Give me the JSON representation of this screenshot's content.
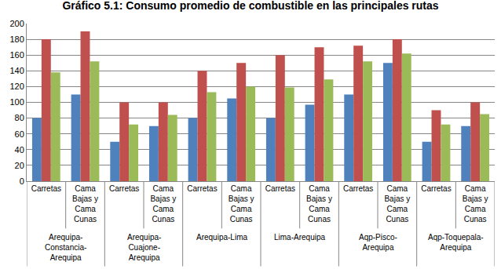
{
  "chart_data": {
    "type": "bar",
    "title": "Gráfico 5.1: Consumo promedio de combustible en las principales rutas",
    "categories": [
      "Carretas",
      "Cama Bajas y Cama Cunas",
      "Carretas",
      "Cama Bajas y Cama Cunas",
      "Carretas",
      "Cama Bajas y Cama Cunas",
      "Carretas",
      "Cama Bajas y Cama Cunas",
      "Carretas",
      "Cama Bajas y Cama Cunas",
      "Carretas",
      "Cama Bajas y Cama Cunas"
    ],
    "category_groups": [
      "Arequipa-Constancia-Arequipa",
      "Arequipa-Constancia-Arequipa",
      "Arequipa-Cuajone-Arequipa",
      "Arequipa-Cuajone-Arequipa",
      "Arequipa-Lima",
      "Arequipa-Lima",
      "Lima-Arequipa",
      "Lima-Arequipa",
      "Aqp-Pisco-Arequipa",
      "Aqp-Pisco-Arequipa",
      "Aqp-Toquepala-Arequipa",
      "Aqp-Toquepala-Arequipa"
    ],
    "series": [
      {
        "color": "#4f81bd",
        "values": [
          80,
          110,
          50,
          70,
          80,
          105,
          80,
          97,
          110,
          150,
          50,
          70
        ]
      },
      {
        "color": "#c0504d",
        "values": [
          180,
          190,
          100,
          100,
          140,
          150,
          160,
          170,
          172,
          180,
          90,
          100
        ]
      },
      {
        "color": "#9bbb59",
        "values": [
          138,
          152,
          72,
          84,
          113,
          120,
          119,
          129,
          152,
          162,
          72,
          85
        ]
      }
    ],
    "ylim": [
      0,
      200
    ],
    "yticks": [
      0,
      20,
      40,
      60,
      80,
      100,
      120,
      140,
      160,
      180,
      200
    ],
    "grid": true
  }
}
